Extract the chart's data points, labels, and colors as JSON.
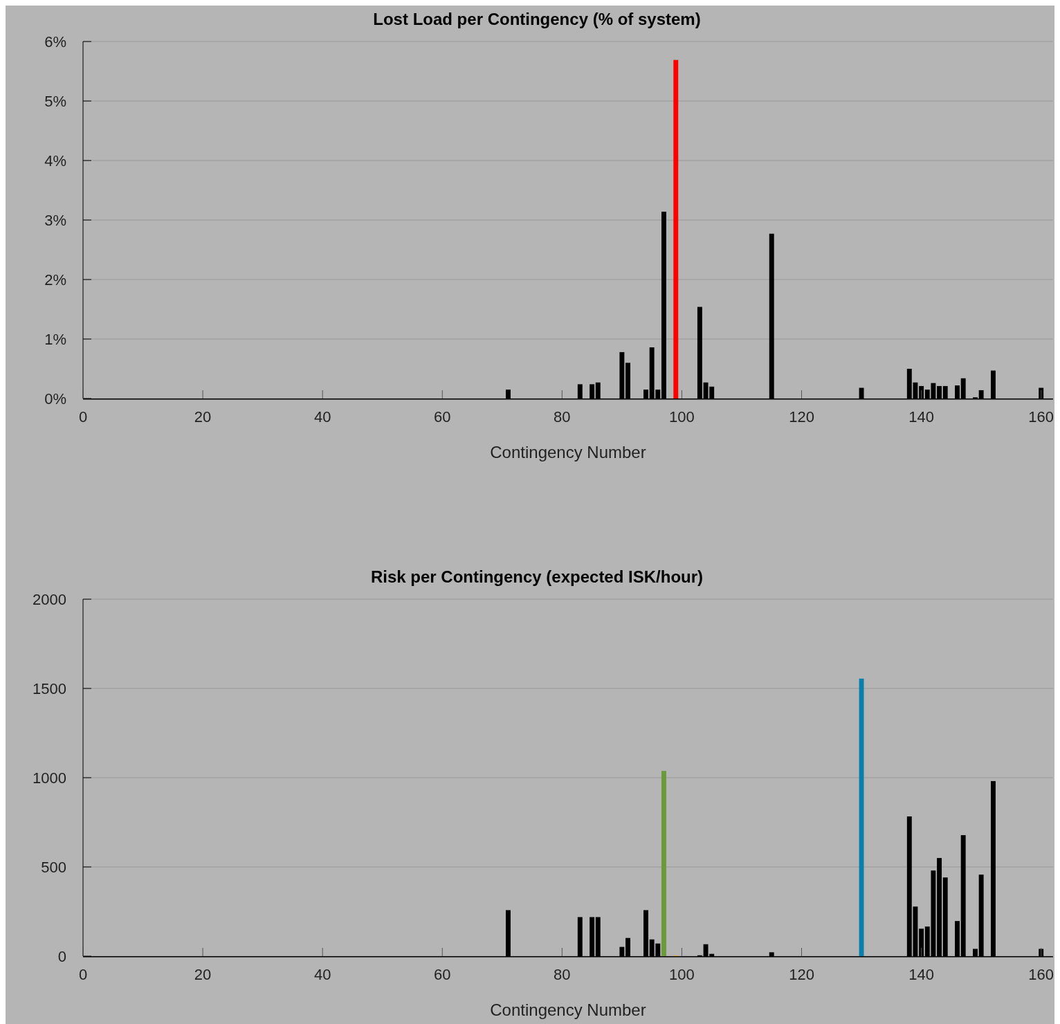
{
  "chart_data": [
    {
      "type": "bar",
      "title": "Lost Load per Contingency (% of system)",
      "xlabel": "Contingency Number",
      "x": [
        71,
        83,
        85,
        86,
        90,
        91,
        94,
        95,
        96,
        97,
        99,
        103,
        104,
        105,
        115,
        130,
        138,
        139,
        140,
        141,
        142,
        143,
        144,
        146,
        147,
        149,
        150,
        152,
        160
      ],
      "values": [
        0.15,
        0.24,
        0.24,
        0.27,
        0.78,
        0.6,
        0.15,
        0.86,
        0.15,
        3.14,
        5.69,
        1.54,
        0.27,
        0.2,
        2.77,
        0.18,
        0.5,
        0.27,
        0.21,
        0.15,
        0.26,
        0.21,
        0.21,
        0.22,
        0.34,
        0.02,
        0.14,
        0.47,
        0.18
      ],
      "colors": [
        "#000000",
        "#000000",
        "#000000",
        "#000000",
        "#000000",
        "#000000",
        "#000000",
        "#000000",
        "#000000",
        "#000000",
        "#ff0000",
        "#000000",
        "#000000",
        "#000000",
        "#000000",
        "#000000",
        "#000000",
        "#000000",
        "#000000",
        "#000000",
        "#000000",
        "#000000",
        "#000000",
        "#000000",
        "#000000",
        "#000000",
        "#000000",
        "#000000",
        "#000000"
      ],
      "xlim": [
        0,
        162
      ],
      "xticks": [
        0,
        20,
        40,
        60,
        80,
        100,
        120,
        140,
        160
      ],
      "ylim": [
        0,
        6
      ],
      "yticks": [
        {
          "value": 0,
          "label": "0%"
        },
        {
          "value": 1,
          "label": "1%"
        },
        {
          "value": 2,
          "label": "2%"
        },
        {
          "value": 3,
          "label": "3%"
        },
        {
          "value": 4,
          "label": "4%"
        },
        {
          "value": 5,
          "label": "5%"
        },
        {
          "value": 6,
          "label": "6%"
        }
      ],
      "grid": "y"
    },
    {
      "type": "bar",
      "title": "Risk per Contingency (expected ISK/hour)",
      "xlabel": "Contingency Number",
      "x": [
        71,
        83,
        85,
        86,
        90,
        91,
        94,
        95,
        96,
        97,
        99,
        103,
        104,
        105,
        115,
        130,
        138,
        139,
        140,
        141,
        142,
        143,
        144,
        146,
        147,
        149,
        150,
        152,
        160
      ],
      "values": [
        258,
        219,
        219,
        219,
        52,
        102,
        258,
        94,
        71,
        1038,
        3,
        5,
        67,
        13,
        22,
        1555,
        783,
        278,
        154,
        166,
        480,
        550,
        441,
        197,
        678,
        41,
        457,
        981,
        41
      ],
      "colors": [
        "#000000",
        "#000000",
        "#000000",
        "#000000",
        "#000000",
        "#000000",
        "#000000",
        "#000000",
        "#000000",
        "#6a9a3a",
        "#e6a817",
        "#000000",
        "#000000",
        "#000000",
        "#000000",
        "#0a7fad",
        "#000000",
        "#000000",
        "#000000",
        "#000000",
        "#000000",
        "#000000",
        "#000000",
        "#000000",
        "#000000",
        "#000000",
        "#000000",
        "#000000",
        "#000000"
      ],
      "xlim": [
        0,
        162
      ],
      "xticks": [
        0,
        20,
        40,
        60,
        80,
        100,
        120,
        140,
        160
      ],
      "ylim": [
        0,
        2000
      ],
      "yticks": [
        0,
        500,
        1000,
        1500,
        2000
      ],
      "grid": "y"
    }
  ]
}
